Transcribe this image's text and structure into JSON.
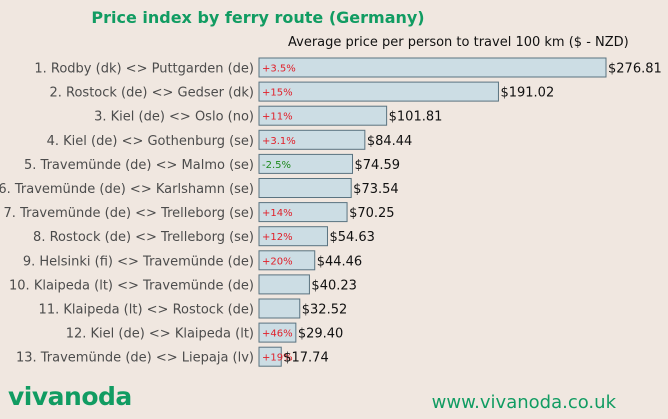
{
  "header": {
    "title": "Price index by ferry route (Germany)",
    "subtitle": "Average price per person to travel 100 km ($ - NZD)"
  },
  "footer": {
    "logo": "vivanoda",
    "url": "www.vivanoda.co.uk"
  },
  "colors": {
    "bar_fill": "#ccdde4",
    "bar_stroke": "#5a7380",
    "increase": "#e0202a",
    "decrease": "#1e8a1e",
    "brand": "#119c62"
  },
  "chart_data": {
    "type": "bar",
    "orientation": "horizontal",
    "title": "Price index by ferry route (Germany)",
    "subtitle": "Average price per person to travel 100 km ($ - NZD)",
    "xlabel": "",
    "ylabel": "",
    "xlim": [
      0,
      276.81
    ],
    "grid": false,
    "categories": [
      "1. Rodby (dk) <> Puttgarden (de)",
      "2. Rostock (de) <> Gedser (dk)",
      "3. Kiel (de) <> Oslo (no)",
      "4. Kiel (de) <> Gothenburg (se)",
      "5. Travemünde (de) <> Malmo (se)",
      "6. Travemünde (de) <> Karlshamn (se)",
      "7. Travemünde (de) <> Trelleborg (se)",
      "8. Rostock (de) <> Trelleborg (se)",
      "9. Helsinki (fi) <> Travemünde (de)",
      "10. Klaipeda (lt) <> Travemünde (de)",
      "11. Klaipeda (lt) <> Rostock (de)",
      "12. Kiel (de) <> Klaipeda (lt)",
      "13. Travemünde (de) <> Liepaja (lv)"
    ],
    "values": [
      276.81,
      191.02,
      101.81,
      84.44,
      74.59,
      73.54,
      70.25,
      54.63,
      44.46,
      40.23,
      32.52,
      29.4,
      17.74
    ],
    "value_labels": [
      "$276.81",
      "$191.02",
      "$101.81",
      "$84.44",
      "$74.59",
      "$73.54",
      "$70.25",
      "$54.63",
      "$44.46",
      "$40.23",
      "$32.52",
      "$29.40",
      "$17.74"
    ],
    "change_labels": [
      "+3.5%",
      "+15%",
      "+11%",
      "+3.1%",
      "-2.5%",
      "",
      "+14%",
      "+12%",
      "+20%",
      "",
      "",
      "+46%",
      "+19%"
    ]
  }
}
